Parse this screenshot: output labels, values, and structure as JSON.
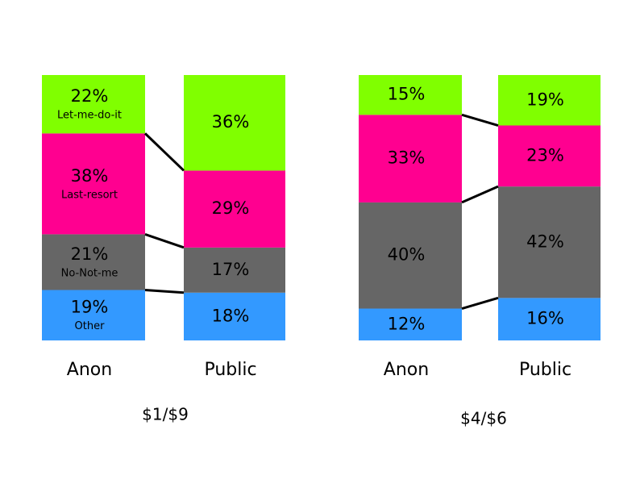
{
  "chart_data": [
    {
      "type": "bar",
      "stacked": true,
      "title": "$1/$9",
      "categories": [
        "Anon",
        "Public"
      ],
      "series": [
        {
          "name": "Other",
          "color": "#3399ff",
          "values": [
            19,
            18
          ],
          "value_labels": [
            "19%",
            "18%"
          ]
        },
        {
          "name": "No-Not-me",
          "color": "#666666",
          "values": [
            21,
            17
          ],
          "value_labels": [
            "21%",
            "17%"
          ]
        },
        {
          "name": "Last-resort",
          "color": "#ff0090",
          "values": [
            38,
            29
          ],
          "value_labels": [
            "38%",
            "29%"
          ]
        },
        {
          "name": "Let-me-do-it",
          "color": "#80ff00",
          "values": [
            22,
            36
          ],
          "value_labels": [
            "22%",
            "36%"
          ]
        }
      ]
    },
    {
      "type": "bar",
      "stacked": true,
      "title": "$4/$6",
      "categories": [
        "Anon",
        "Public"
      ],
      "series": [
        {
          "color": "#3399ff",
          "values": [
            12,
            16
          ],
          "value_labels": [
            "12%",
            "16%"
          ]
        },
        {
          "color": "#666666",
          "values": [
            40,
            42
          ],
          "value_labels": [
            "40%",
            "42%"
          ]
        },
        {
          "color": "#ff0090",
          "values": [
            33,
            23
          ],
          "value_labels": [
            "33%",
            "23%"
          ]
        },
        {
          "color": "#80ff00",
          "values": [
            15,
            19
          ],
          "value_labels": [
            "15%",
            "19%"
          ]
        }
      ]
    }
  ]
}
